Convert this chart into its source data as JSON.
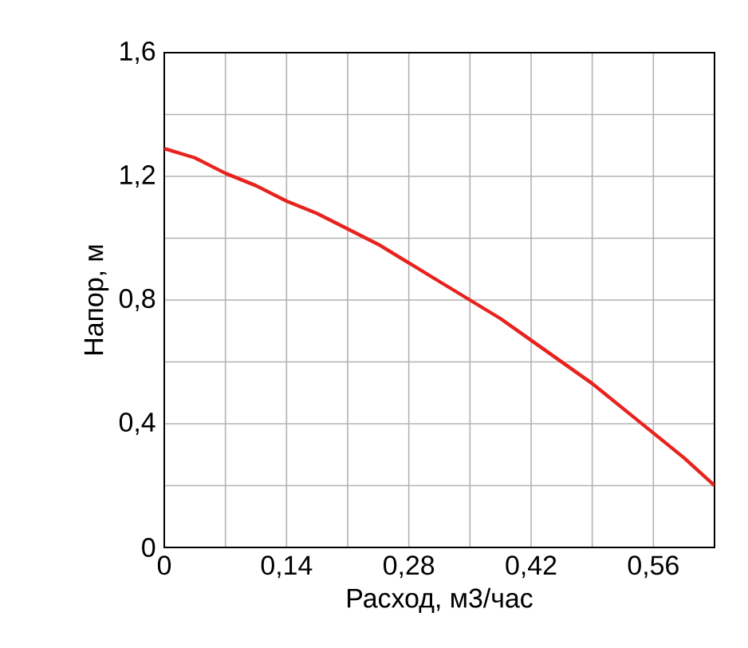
{
  "chart_data": {
    "type": "line",
    "xlabel": "Расход, м3/час",
    "ylabel": "Напор, м",
    "x": [
      0,
      0.035,
      0.07,
      0.105,
      0.14,
      0.175,
      0.21,
      0.245,
      0.28,
      0.315,
      0.35,
      0.385,
      0.42,
      0.455,
      0.49,
      0.525,
      0.56,
      0.595,
      0.63
    ],
    "values": [
      1.29,
      1.26,
      1.21,
      1.17,
      1.12,
      1.08,
      1.03,
      0.98,
      0.92,
      0.86,
      0.8,
      0.74,
      0.67,
      0.6,
      0.53,
      0.45,
      0.37,
      0.29,
      0.2
    ],
    "color": "#e8231e",
    "xlim": [
      0,
      0.63
    ],
    "ylim": [
      0,
      1.6
    ],
    "xticks": [
      0,
      {
        "value": 0.07,
        "label": null
      },
      {
        "value": 0.14,
        "label": "0,14"
      },
      {
        "value": 0.21,
        "label": null
      },
      {
        "value": 0.28,
        "label": "0,28"
      },
      {
        "value": 0.35,
        "label": null
      },
      {
        "value": 0.42,
        "label": "0,42"
      },
      {
        "value": 0.49,
        "label": null
      },
      {
        "value": 0.56,
        "label": "0,56"
      },
      {
        "value": 0.63,
        "label": null
      }
    ],
    "yticks": [
      0,
      {
        "value": 0.2,
        "label": null
      },
      {
        "value": 0.4,
        "label": "0,4"
      },
      {
        "value": 0.6,
        "label": null
      },
      {
        "value": 0.8,
        "label": "0,8"
      },
      {
        "value": 1.0,
        "label": null
      },
      {
        "value": 1.2,
        "label": "1,2"
      },
      {
        "value": 1.4,
        "label": null
      },
      {
        "value": 1.6,
        "label": "1,6"
      }
    ],
    "grid": true
  }
}
